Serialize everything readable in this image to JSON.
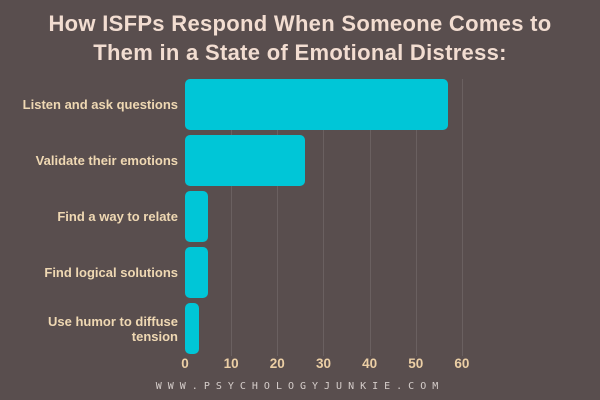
{
  "title": {
    "line1": "How ISFPs Respond When Someone Comes to",
    "line2": "Them in a State of Emotional Distress:"
  },
  "footer": {
    "url_text": "WWW.PSYCHOLOGYJUNKIE.COM"
  },
  "colors": {
    "background": "#594e4e",
    "bar": "#00c6d7",
    "title_text": "#f2ddd1",
    "category_label_text": "#efd8b3",
    "tick_label_text": "#eccfa5",
    "gridline": "#6a6060",
    "footer_text": "#d6cecb"
  },
  "chart_data": {
    "type": "bar",
    "orientation": "horizontal",
    "title": "How ISFPs Respond When Someone Comes to Them in a State of Emotional Distress:",
    "categories": [
      "Listen and ask questions",
      "Validate their emotions",
      "Find a way to relate",
      "Find logical solutions",
      "Use humor to diffuse tension"
    ],
    "values": [
      57,
      26,
      5,
      5,
      3
    ],
    "xlabel": "",
    "ylabel": "",
    "xlim": [
      0,
      65
    ],
    "xticks": [
      0,
      10,
      20,
      30,
      40,
      50,
      60
    ],
    "grid": true,
    "legend": false
  }
}
